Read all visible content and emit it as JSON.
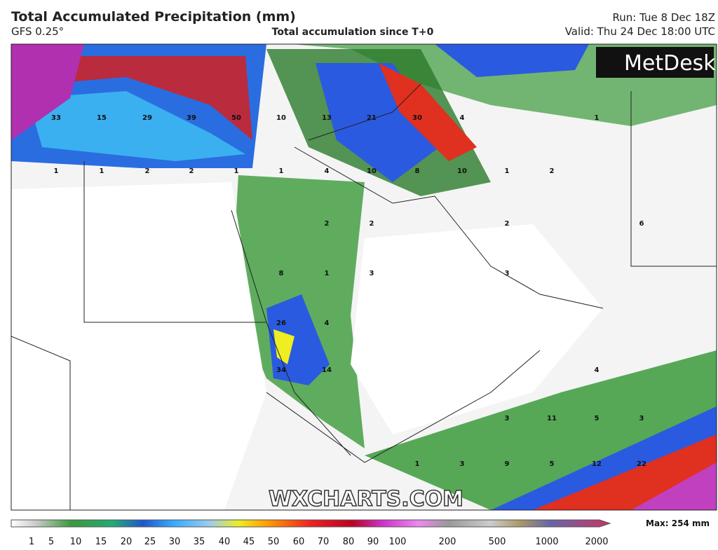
{
  "header": {
    "title": "Total Accumulated Precipitation (mm)",
    "model": "GFS 0.25°",
    "subtitle": "Total accumulation since T+0",
    "run": "Run: Tue 8 Dec 18Z",
    "valid": "Valid: Thu 24 Dec 18:00 UTC"
  },
  "logo": "MetDesk",
  "watermark": "WXCHARTS.COM",
  "map_labels": [
    33,
    15,
    29,
    39,
    50,
    10,
    13,
    21,
    30,
    4,
    1,
    1,
    1,
    2,
    2,
    1,
    1,
    4,
    10,
    8,
    10,
    1,
    2,
    2,
    2,
    2,
    6,
    8,
    1,
    3,
    3,
    26,
    4,
    34,
    14,
    4,
    3,
    11,
    5,
    3,
    1,
    3,
    9,
    5,
    12,
    22
  ],
  "colorbar": {
    "ticks": [
      1,
      5,
      10,
      15,
      20,
      25,
      30,
      35,
      40,
      45,
      50,
      60,
      70,
      80,
      90,
      100,
      200,
      500,
      1000,
      2000
    ],
    "max_label": "Max: 254 mm"
  }
}
